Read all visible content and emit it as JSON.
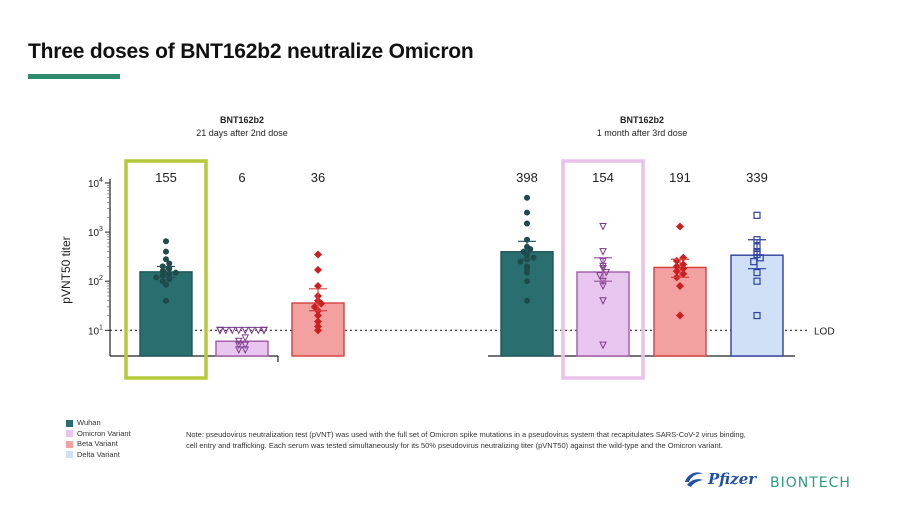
{
  "page": {
    "title": "Three doses of BNT162b2 neutralize Omicron",
    "accent_color": "#2e8b6e"
  },
  "chart_data": {
    "type": "bar",
    "ylabel": "pVNT50 titer",
    "yscale": "log",
    "ylim": [
      3,
      10000
    ],
    "yticks": [
      {
        "value": 10,
        "label": "10"
      },
      {
        "value": 100,
        "label": "10"
      },
      {
        "value": 1000,
        "label": "10"
      },
      {
        "value": 10000,
        "label": "10"
      }
    ],
    "ytick_exponents": [
      "1",
      "2",
      "3",
      "4"
    ],
    "lod": {
      "value": 10,
      "label": "LOD"
    },
    "groups": [
      {
        "title": "BNT162b2",
        "subtitle": "21 days after 2nd dose"
      },
      {
        "title": "BNT162b2",
        "subtitle": "1 month after 3rd dose"
      }
    ],
    "series_styles": [
      {
        "name": "Wuhan",
        "fill": "#2a6f70",
        "edge": "#1f5556",
        "marker": "circle",
        "marker_color": "#1e4a4b"
      },
      {
        "name": "Omicron Variant",
        "fill": "#e8c6ef",
        "edge": "#a05aa8",
        "marker": "triangle-down",
        "marker_color": "#7a3a88"
      },
      {
        "name": "Beta Variant",
        "fill": "#f3a0a0",
        "edge": "#d44040",
        "marker": "diamond",
        "marker_color": "#cc1f1f"
      },
      {
        "name": "Delta Variant",
        "fill": "#cfe0f7",
        "edge": "#2e3fa0",
        "marker": "square",
        "marker_color": "#2e3fa0"
      }
    ],
    "bars": [
      {
        "group": 0,
        "series": 0,
        "value": 155,
        "label": "155",
        "err": [
          120,
          200
        ],
        "highlight": "#b5c93a",
        "points": [
          650,
          400,
          280,
          230,
          200,
          180,
          160,
          150,
          140,
          130,
          120,
          110,
          100,
          85,
          40
        ]
      },
      {
        "group": 0,
        "series": 1,
        "value": 6,
        "label": "6",
        "err": null,
        "highlight": null,
        "points": [
          10,
          10,
          10,
          10,
          10,
          10,
          10,
          10,
          10,
          10,
          10,
          10,
          7,
          6,
          5,
          5,
          4,
          4
        ]
      },
      {
        "group": 0,
        "series": 2,
        "value": 36,
        "label": "36",
        "err": [
          25,
          70
        ],
        "highlight": null,
        "points": [
          350,
          170,
          80,
          50,
          40,
          35,
          30,
          25,
          20,
          15,
          12,
          10
        ]
      },
      {
        "group": 1,
        "series": 0,
        "value": 398,
        "label": "398",
        "err": [
          280,
          650
        ],
        "highlight": null,
        "points": [
          5000,
          2500,
          1500,
          700,
          500,
          450,
          400,
          350,
          300,
          280,
          250,
          200,
          180,
          150,
          100,
          40
        ]
      },
      {
        "group": 1,
        "series": 1,
        "value": 154,
        "label": "154",
        "err": [
          100,
          300
        ],
        "highlight": "#e8c2ea",
        "points": [
          1300,
          400,
          250,
          200,
          180,
          150,
          130,
          100,
          80,
          40,
          5
        ]
      },
      {
        "group": 1,
        "series": 2,
        "value": 191,
        "label": "191",
        "err": [
          120,
          280
        ],
        "highlight": null,
        "points": [
          1300,
          300,
          260,
          220,
          200,
          180,
          160,
          140,
          120,
          80,
          20
        ]
      },
      {
        "group": 1,
        "series": 3,
        "value": 339,
        "label": "339",
        "err": [
          180,
          700
        ],
        "highlight": null,
        "points": [
          2200,
          700,
          500,
          400,
          350,
          300,
          250,
          150,
          100,
          20
        ]
      }
    ]
  },
  "legend": {
    "items": [
      "Wuhan",
      "Omicron Variant",
      "Beta Variant",
      "Delta Variant"
    ],
    "colors": [
      "#2a6f70",
      "#e8c6ef",
      "#f3a0a0",
      "#cfe0f7"
    ]
  },
  "note": "Note: pseudovirus neutralization test (pVNT) was used with the full set of Omicron spike mutations in a pseudovirus system that recapitulates SARS-CoV-2 virus binding, cell entry and trafficking. Each serum was tested simultaneously for its 50% pseudovirus neutralizing titer (pVNT50) against the wild-type and the Omicron variant.",
  "logos": {
    "pfizer": "Pfizer",
    "biontech": "BIONTECH"
  }
}
